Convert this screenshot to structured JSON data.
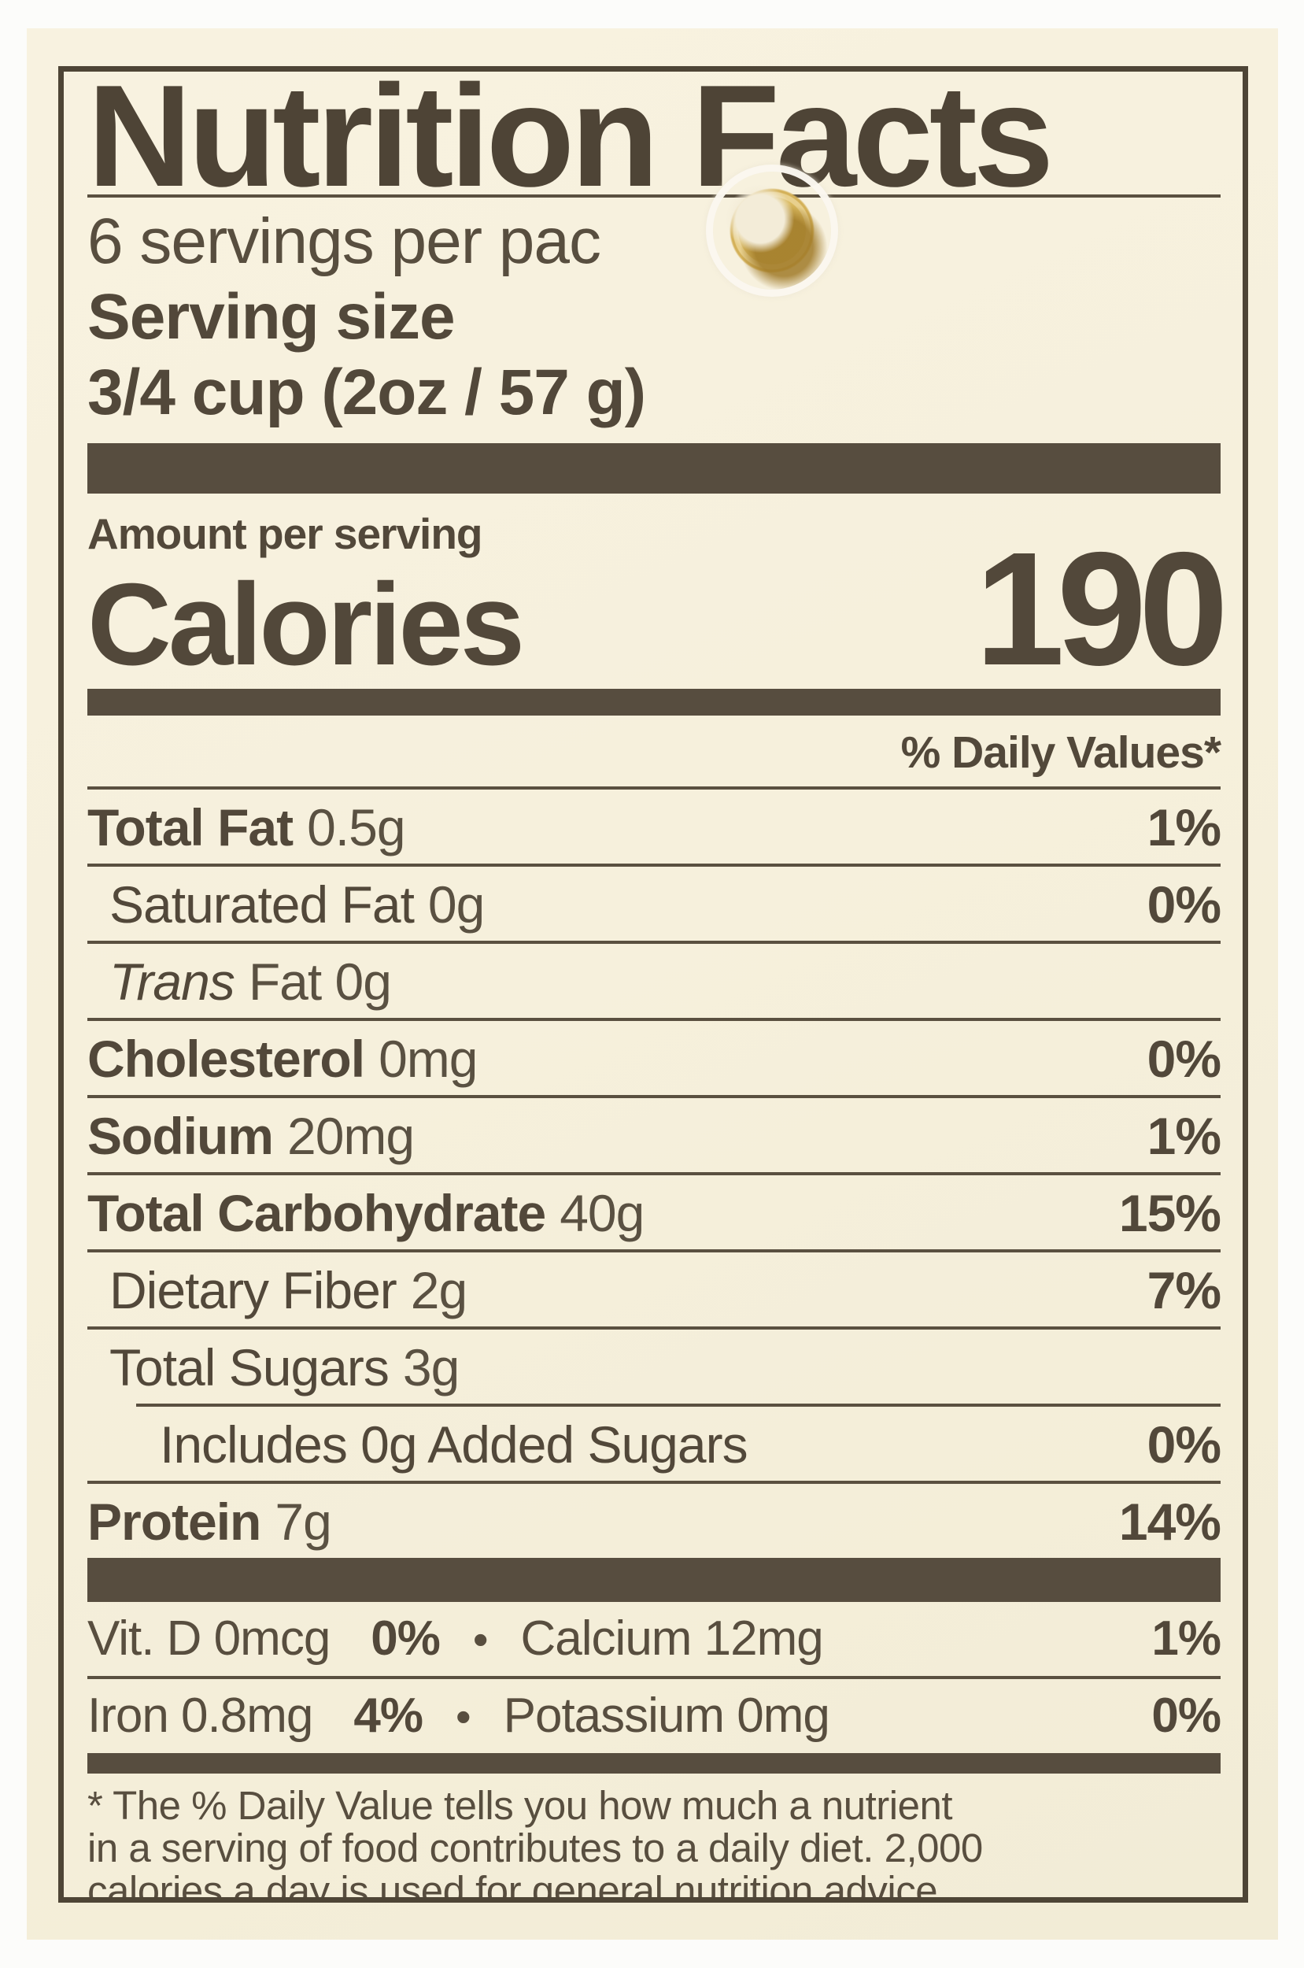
{
  "colors": {
    "paper": "#f6f0dc",
    "ink": "#52483a",
    "hole_ring": "#d9b95f"
  },
  "label": {
    "title": "Nutrition Facts",
    "servings_per_container": "6 servings per pac",
    "serving_size_label": "Serving size",
    "serving_size_value": "3/4 cup (2oz / 57 g)",
    "amount_per_serving": "Amount per serving",
    "calories_label": "Calories",
    "calories_value": "190",
    "daily_value_header": "% Daily Values*",
    "nutrients": [
      {
        "name": "Total Fat",
        "amount": "0.5g",
        "dv": "1%"
      },
      {
        "name": "Saturated Fat",
        "amount": "0g",
        "dv": "0%"
      },
      {
        "name": "Trans",
        "amount": "Fat 0g",
        "dv": ""
      },
      {
        "name": "Cholesterol",
        "amount": "0mg",
        "dv": "0%"
      },
      {
        "name": "Sodium",
        "amount": "20mg",
        "dv": "1%"
      },
      {
        "name": "Total Carbohydrate",
        "amount": "40g",
        "dv": "15%"
      },
      {
        "name": "Dietary Fiber",
        "amount": "2g",
        "dv": "7%"
      },
      {
        "name": "Total Sugars",
        "amount": "3g",
        "dv": ""
      },
      {
        "name": "Includes 0g Added Sugars",
        "amount": "",
        "dv": "0%"
      },
      {
        "name": "Protein",
        "amount": "7g",
        "dv": "14%"
      }
    ],
    "micros": {
      "bullet": "•",
      "rows": [
        {
          "left": "Vit. D 0mcg",
          "left_dv": "0%",
          "right": "Calcium 12mg",
          "right_dv": "1%"
        },
        {
          "left": "Iron 0.8mg",
          "left_dv": "4%",
          "right": "Potassium 0mg",
          "right_dv": "0%"
        }
      ]
    },
    "footnote_lines": [
      "* The % Daily Value tells you how much a nutrient",
      "in a serving of food contributes to a daily diet. 2,000",
      "calories a day is used for general nutrition advice."
    ]
  }
}
